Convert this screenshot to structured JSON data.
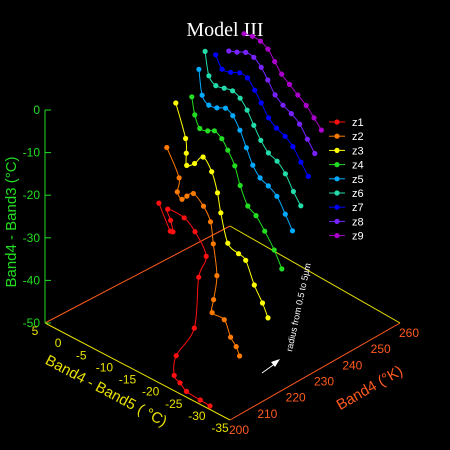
{
  "chart_data": {
    "type": "line",
    "title": "Model III",
    "axes": {
      "x": {
        "label": "Band4 - Band5 ( °C)",
        "ticks": [
          "5",
          "0",
          "-5",
          "-10",
          "-15",
          "-20",
          "-25",
          "-30",
          "-35"
        ],
        "range": [
          5,
          -35
        ],
        "color": "#e8e000"
      },
      "y": {
        "label": "Band4 (°K)",
        "ticks": [
          "200",
          "210",
          "220",
          "230",
          "240",
          "250",
          "260"
        ],
        "range": [
          200,
          260
        ],
        "color": "#ff5a1e"
      },
      "z": {
        "label": "Band4 - Band3 (°C)",
        "ticks": [
          "0",
          "-10",
          "-20",
          "-30",
          "-40",
          "-50"
        ],
        "range": [
          -50,
          0
        ],
        "color": "#22dd22"
      }
    },
    "annotation": "radius  from  0.5 to 5µm",
    "legend_position": "right",
    "series": [
      {
        "name": "z1",
        "color": "#ff1010",
        "points": [
          [
            2.8,
            236.6,
            -34.5
          ],
          [
            -1.5,
            233.6,
            -37.5
          ],
          [
            -3.2,
            231.8,
            -36.0
          ],
          [
            -3.6,
            230.3,
            -32.5
          ],
          [
            -4.0,
            228.6,
            -29.0
          ],
          [
            -8.0,
            227.9,
            -28.5
          ],
          [
            -10.7,
            227.3,
            -30.0
          ],
          [
            -14.3,
            225.4,
            -33.0
          ],
          [
            -14.2,
            222.9,
            -37.0
          ],
          [
            -16.2,
            218.1,
            -46.0
          ],
          [
            -15.4,
            213.0,
            -51.0
          ],
          [
            -15.7,
            211.8,
            -55.0
          ],
          [
            -17.4,
            211.1,
            -55.5
          ],
          [
            -19.4,
            210.1,
            -56.0
          ],
          [
            -23.5,
            208.3,
            -55.0
          ],
          [
            -26.2,
            207.3,
            -54.5
          ]
        ]
      },
      {
        "name": "z2",
        "color": "#ff7a00",
        "points": [
          [
            2.8,
            239.4,
            -22.5
          ],
          [
            -1.2,
            237.2,
            -26.5
          ],
          [
            -2.1,
            235.1,
            -28.5
          ],
          [
            -4.1,
            233.5,
            -28.5
          ],
          [
            -5.7,
            232.6,
            -26.5
          ],
          [
            -7.6,
            231.8,
            -24.5
          ],
          [
            -10.4,
            230.8,
            -25.5
          ],
          [
            -12.6,
            229.7,
            -27.5
          ],
          [
            -14.3,
            227.9,
            -31.0
          ],
          [
            -16.8,
            225.1,
            -36.0
          ],
          [
            -17.8,
            222.3,
            -40.0
          ],
          [
            -18.5,
            220.6,
            -42.0
          ],
          [
            -21.7,
            219.7,
            -41.5
          ],
          [
            -24.6,
            217.2,
            -43.0
          ],
          [
            -27.1,
            215.1,
            -43.0
          ],
          [
            -28.5,
            214.0,
            -44.0
          ]
        ]
      },
      {
        "name": "z3",
        "color": "#ffff00",
        "points": [
          [
            3.0,
            242.9,
            -13.5
          ],
          [
            -0.9,
            240.0,
            -18.5
          ],
          [
            -2.2,
            238.1,
            -20.5
          ],
          [
            -3.4,
            236.3,
            -22.0
          ],
          [
            -5.6,
            235.5,
            -20.0
          ],
          [
            -7.8,
            234.9,
            -17.0
          ],
          [
            -10.4,
            233.7,
            -18.5
          ],
          [
            -12.7,
            232.0,
            -21.5
          ],
          [
            -14.5,
            230.2,
            -24.5
          ],
          [
            -17.5,
            227.8,
            -29.0
          ],
          [
            -20.8,
            226.2,
            -29.0
          ],
          [
            -22.9,
            225.3,
            -29.0
          ],
          [
            -25.8,
            223.6,
            -32.5
          ],
          [
            -28.6,
            221.9,
            -34.5
          ],
          [
            -30.9,
            220.1,
            -36.0
          ]
        ]
      },
      {
        "name": "z4",
        "color": "#22dd22",
        "points": [
          [
            -0.1,
            243.5,
            -10.5
          ],
          [
            -1.9,
            241.6,
            -13.0
          ],
          [
            -3.9,
            240.1,
            -14.5
          ],
          [
            -6.1,
            239.3,
            -13.5
          ],
          [
            -8.1,
            238.4,
            -12.0
          ],
          [
            -10.5,
            237.1,
            -12.0
          ],
          [
            -12.6,
            235.8,
            -13.0
          ],
          [
            -15.2,
            234.0,
            -14.5
          ],
          [
            -17.6,
            232.0,
            -17.0
          ],
          [
            -20.4,
            230.1,
            -19.5
          ],
          [
            -22.8,
            229.1,
            -20.0
          ],
          [
            -25.6,
            227.6,
            -21.5
          ],
          [
            -28.7,
            225.9,
            -23.5
          ],
          [
            -31.2,
            224.5,
            -26.0
          ]
        ]
      },
      {
        "name": "z5",
        "color": "#00aaff",
        "points": [
          [
            -0.1,
            246.0,
            -5.0
          ],
          [
            -2.2,
            243.7,
            -9.0
          ],
          [
            -4.5,
            242.3,
            -9.5
          ],
          [
            -6.8,
            241.4,
            -8.5
          ],
          [
            -9.1,
            240.7,
            -7.0
          ],
          [
            -11.4,
            239.5,
            -7.0
          ],
          [
            -13.8,
            238.1,
            -8.5
          ],
          [
            -16.3,
            236.3,
            -10.5
          ],
          [
            -18.8,
            234.5,
            -12.5
          ],
          [
            -21.3,
            233.0,
            -13.5
          ],
          [
            -23.8,
            231.8,
            -13.5
          ],
          [
            -26.4,
            230.6,
            -14.0
          ],
          [
            -29.2,
            229.0,
            -16.0
          ],
          [
            -31.6,
            227.6,
            -18.0
          ]
        ]
      },
      {
        "name": "z6",
        "color": "#22ddaa",
        "points": [
          [
            -0.2,
            248.0,
            -1.5
          ],
          [
            -2.5,
            245.6,
            -5.0
          ],
          [
            -4.8,
            244.3,
            -5.5
          ],
          [
            -7.1,
            243.5,
            -4.5
          ],
          [
            -9.4,
            242.7,
            -3.5
          ],
          [
            -11.7,
            241.6,
            -3.5
          ],
          [
            -14.0,
            240.3,
            -4.5
          ],
          [
            -16.5,
            238.6,
            -6.0
          ],
          [
            -19.0,
            237.0,
            -7.5
          ],
          [
            -21.5,
            235.6,
            -8.5
          ],
          [
            -24.1,
            234.4,
            -8.5
          ],
          [
            -26.7,
            233.1,
            -9.5
          ],
          [
            -29.4,
            231.5,
            -11.5
          ],
          [
            -31.8,
            230.2,
            -13.0
          ]
        ]
      },
      {
        "name": "z7",
        "color": "#0000ff",
        "points": [
          [
            -2.5,
            248.0,
            -1.0
          ],
          [
            -4.8,
            246.5,
            -2.5
          ],
          [
            -7.2,
            245.6,
            -1.5
          ],
          [
            -9.6,
            244.9,
            0.0
          ],
          [
            -11.9,
            243.9,
            0.5
          ],
          [
            -14.3,
            242.5,
            -0.5
          ],
          [
            -16.7,
            240.9,
            -1.5
          ],
          [
            -19.2,
            239.4,
            -3.0
          ],
          [
            -21.7,
            238.1,
            -3.5
          ],
          [
            -24.3,
            236.9,
            -3.5
          ],
          [
            -26.8,
            235.6,
            -4.0
          ],
          [
            -29.5,
            234.0,
            -5.5
          ],
          [
            -31.9,
            232.7,
            -7.0
          ]
        ]
      },
      {
        "name": "z8",
        "color": "#7722ff",
        "points": [
          [
            -4.9,
            248.7,
            1.0
          ],
          [
            -7.3,
            247.7,
            2.5
          ],
          [
            -9.6,
            247.0,
            4.0
          ],
          [
            -11.9,
            246.1,
            4.5
          ],
          [
            -14.3,
            244.8,
            4.0
          ],
          [
            -16.7,
            243.2,
            3.0
          ],
          [
            -19.2,
            241.7,
            1.5
          ],
          [
            -21.7,
            240.4,
            1.0
          ],
          [
            -24.3,
            239.1,
            1.0
          ],
          [
            -26.9,
            237.8,
            0.5
          ],
          [
            -29.5,
            236.3,
            -1.0
          ],
          [
            -31.9,
            235.0,
            -2.5
          ]
        ]
      },
      {
        "name": "z9",
        "color": "#aa00cc",
        "points": [
          [
            -7.4,
            250.0,
            6.0
          ],
          [
            -9.7,
            249.2,
            7.0
          ],
          [
            -12.0,
            248.3,
            7.5
          ],
          [
            -14.4,
            247.0,
            7.5
          ],
          [
            -16.8,
            245.5,
            6.5
          ],
          [
            -19.2,
            244.0,
            5.5
          ],
          [
            -21.7,
            242.7,
            5.0
          ],
          [
            -24.3,
            241.4,
            4.5
          ],
          [
            -26.9,
            240.1,
            4.0
          ],
          [
            -29.4,
            238.8,
            3.0
          ],
          [
            -31.8,
            237.5,
            2.0
          ]
        ]
      }
    ]
  }
}
